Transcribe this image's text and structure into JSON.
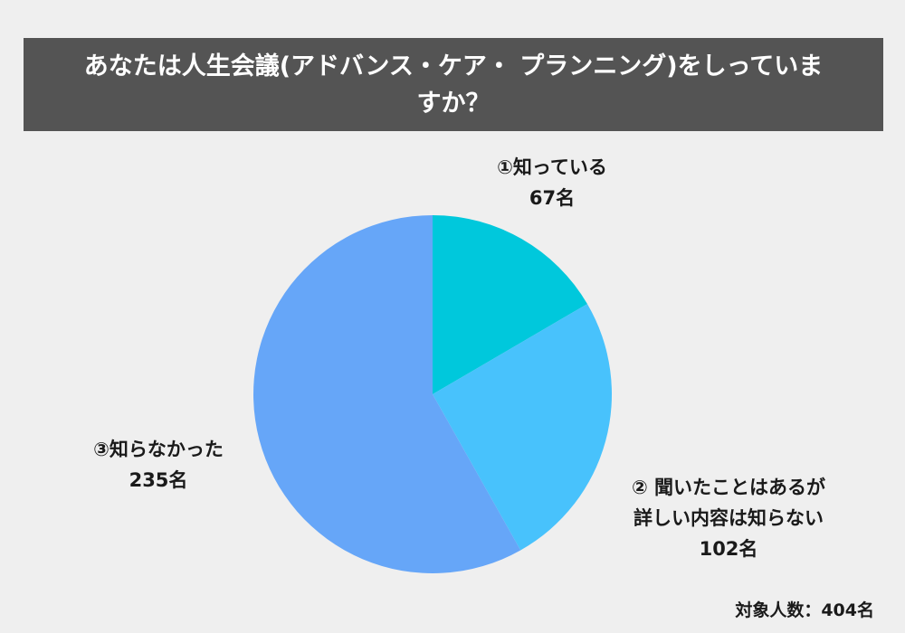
{
  "title": "あなたは人生会議(アドバンス・ケア・ プランニング)をしっていますか？",
  "chart_data": {
    "type": "pie",
    "start_angle_deg": 0,
    "direction": "clockwise",
    "slices": [
      {
        "label": "①知っている",
        "value": 67,
        "value_label": "67名",
        "color": "#00c8dc"
      },
      {
        "label": "② 聞いたことはあるが詳しい内容は知らない",
        "value": 102,
        "value_label": "102名",
        "color": "#48c2fc"
      },
      {
        "label": "③知らなかった",
        "value": 235,
        "value_label": "235名",
        "color": "#66a6f8"
      }
    ]
  },
  "labels": {
    "slice1_line1": "①知っている",
    "slice1_line2": "67名",
    "slice2_line1": "② 聞いたことはあるが",
    "slice2_line2": "詳しい内容は知らない",
    "slice2_line3": "102名",
    "slice3_line1": "③知らなかった",
    "slice3_line2": "235名"
  },
  "footnote": "対象人数：404名"
}
